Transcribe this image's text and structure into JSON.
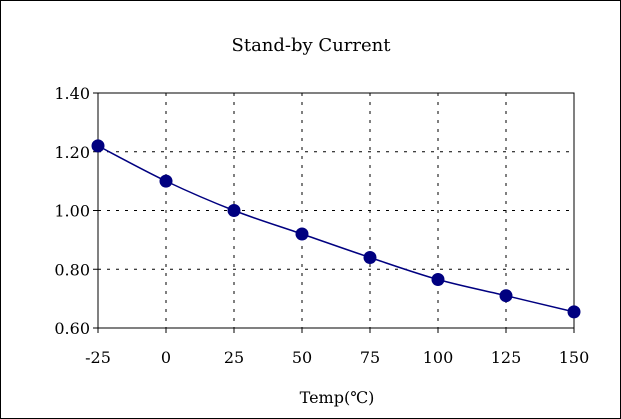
{
  "chart_data": {
    "type": "line",
    "title": "Stand-by Current",
    "xlabel": "Temp(℃)",
    "ylabel": "",
    "x_tick_labels": [
      "-25",
      "0",
      "25",
      "50",
      "75",
      "100",
      "125",
      "150"
    ],
    "y_tick_labels": [
      "0.60",
      "0.80",
      "1.00",
      "1.20",
      "1.40"
    ],
    "xlim": [
      -25,
      150
    ],
    "ylim": [
      0.6,
      1.4
    ],
    "grid": true,
    "legend": "none",
    "series": [
      {
        "x": [
          -25,
          0,
          25,
          50,
          75,
          100,
          125,
          150
        ],
        "y": [
          1.22,
          1.1,
          1.0,
          0.92,
          0.84,
          0.765,
          0.71,
          0.655
        ],
        "color": "#000080"
      }
    ]
  }
}
